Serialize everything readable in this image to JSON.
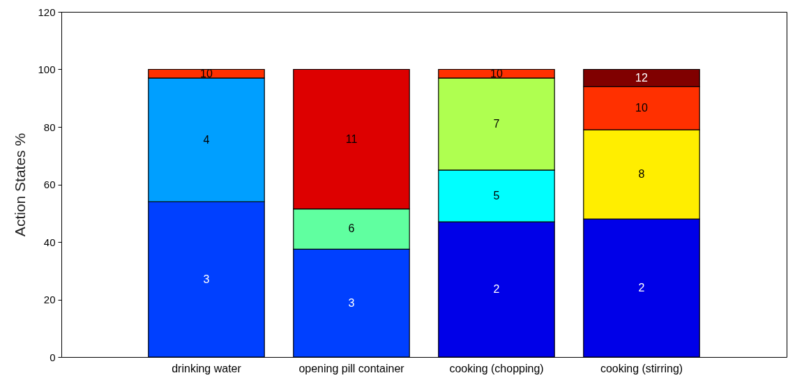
{
  "chart_data": {
    "type": "bar",
    "stacked": true,
    "ylabel": "Action States %",
    "categories": [
      "drinking water",
      "opening pill container",
      "cooking (chopping)",
      "cooking (stirring)"
    ],
    "series": [
      {
        "name": "2",
        "color": "#0000e8",
        "values": [
          null,
          null,
          47,
          48
        ]
      },
      {
        "name": "3",
        "color": "#0040ff",
        "values": [
          54,
          37.5,
          null,
          null
        ]
      },
      {
        "name": "4",
        "color": "#009fff",
        "values": [
          43,
          null,
          null,
          null
        ]
      },
      {
        "name": "5",
        "color": "#00ffff",
        "values": [
          null,
          null,
          18,
          null
        ]
      },
      {
        "name": "6",
        "color": "#60ffa0",
        "values": [
          null,
          14,
          null,
          null
        ]
      },
      {
        "name": "7",
        "color": "#afff50",
        "values": [
          null,
          null,
          32,
          null
        ]
      },
      {
        "name": "8",
        "color": "#ffee00",
        "values": [
          null,
          null,
          null,
          31
        ]
      },
      {
        "name": "10",
        "color": "#ff3000",
        "values": [
          3,
          null,
          3,
          15
        ]
      },
      {
        "name": "11",
        "color": "#dd0000",
        "values": [
          null,
          48.5,
          null,
          null
        ]
      },
      {
        "name": "12",
        "color": "#800000",
        "values": [
          null,
          null,
          null,
          6
        ]
      }
    ],
    "ylim": [
      0,
      120
    ],
    "yticks": [
      0,
      20,
      40,
      60,
      80,
      100,
      120
    ],
    "grid": false,
    "legend": false
  }
}
